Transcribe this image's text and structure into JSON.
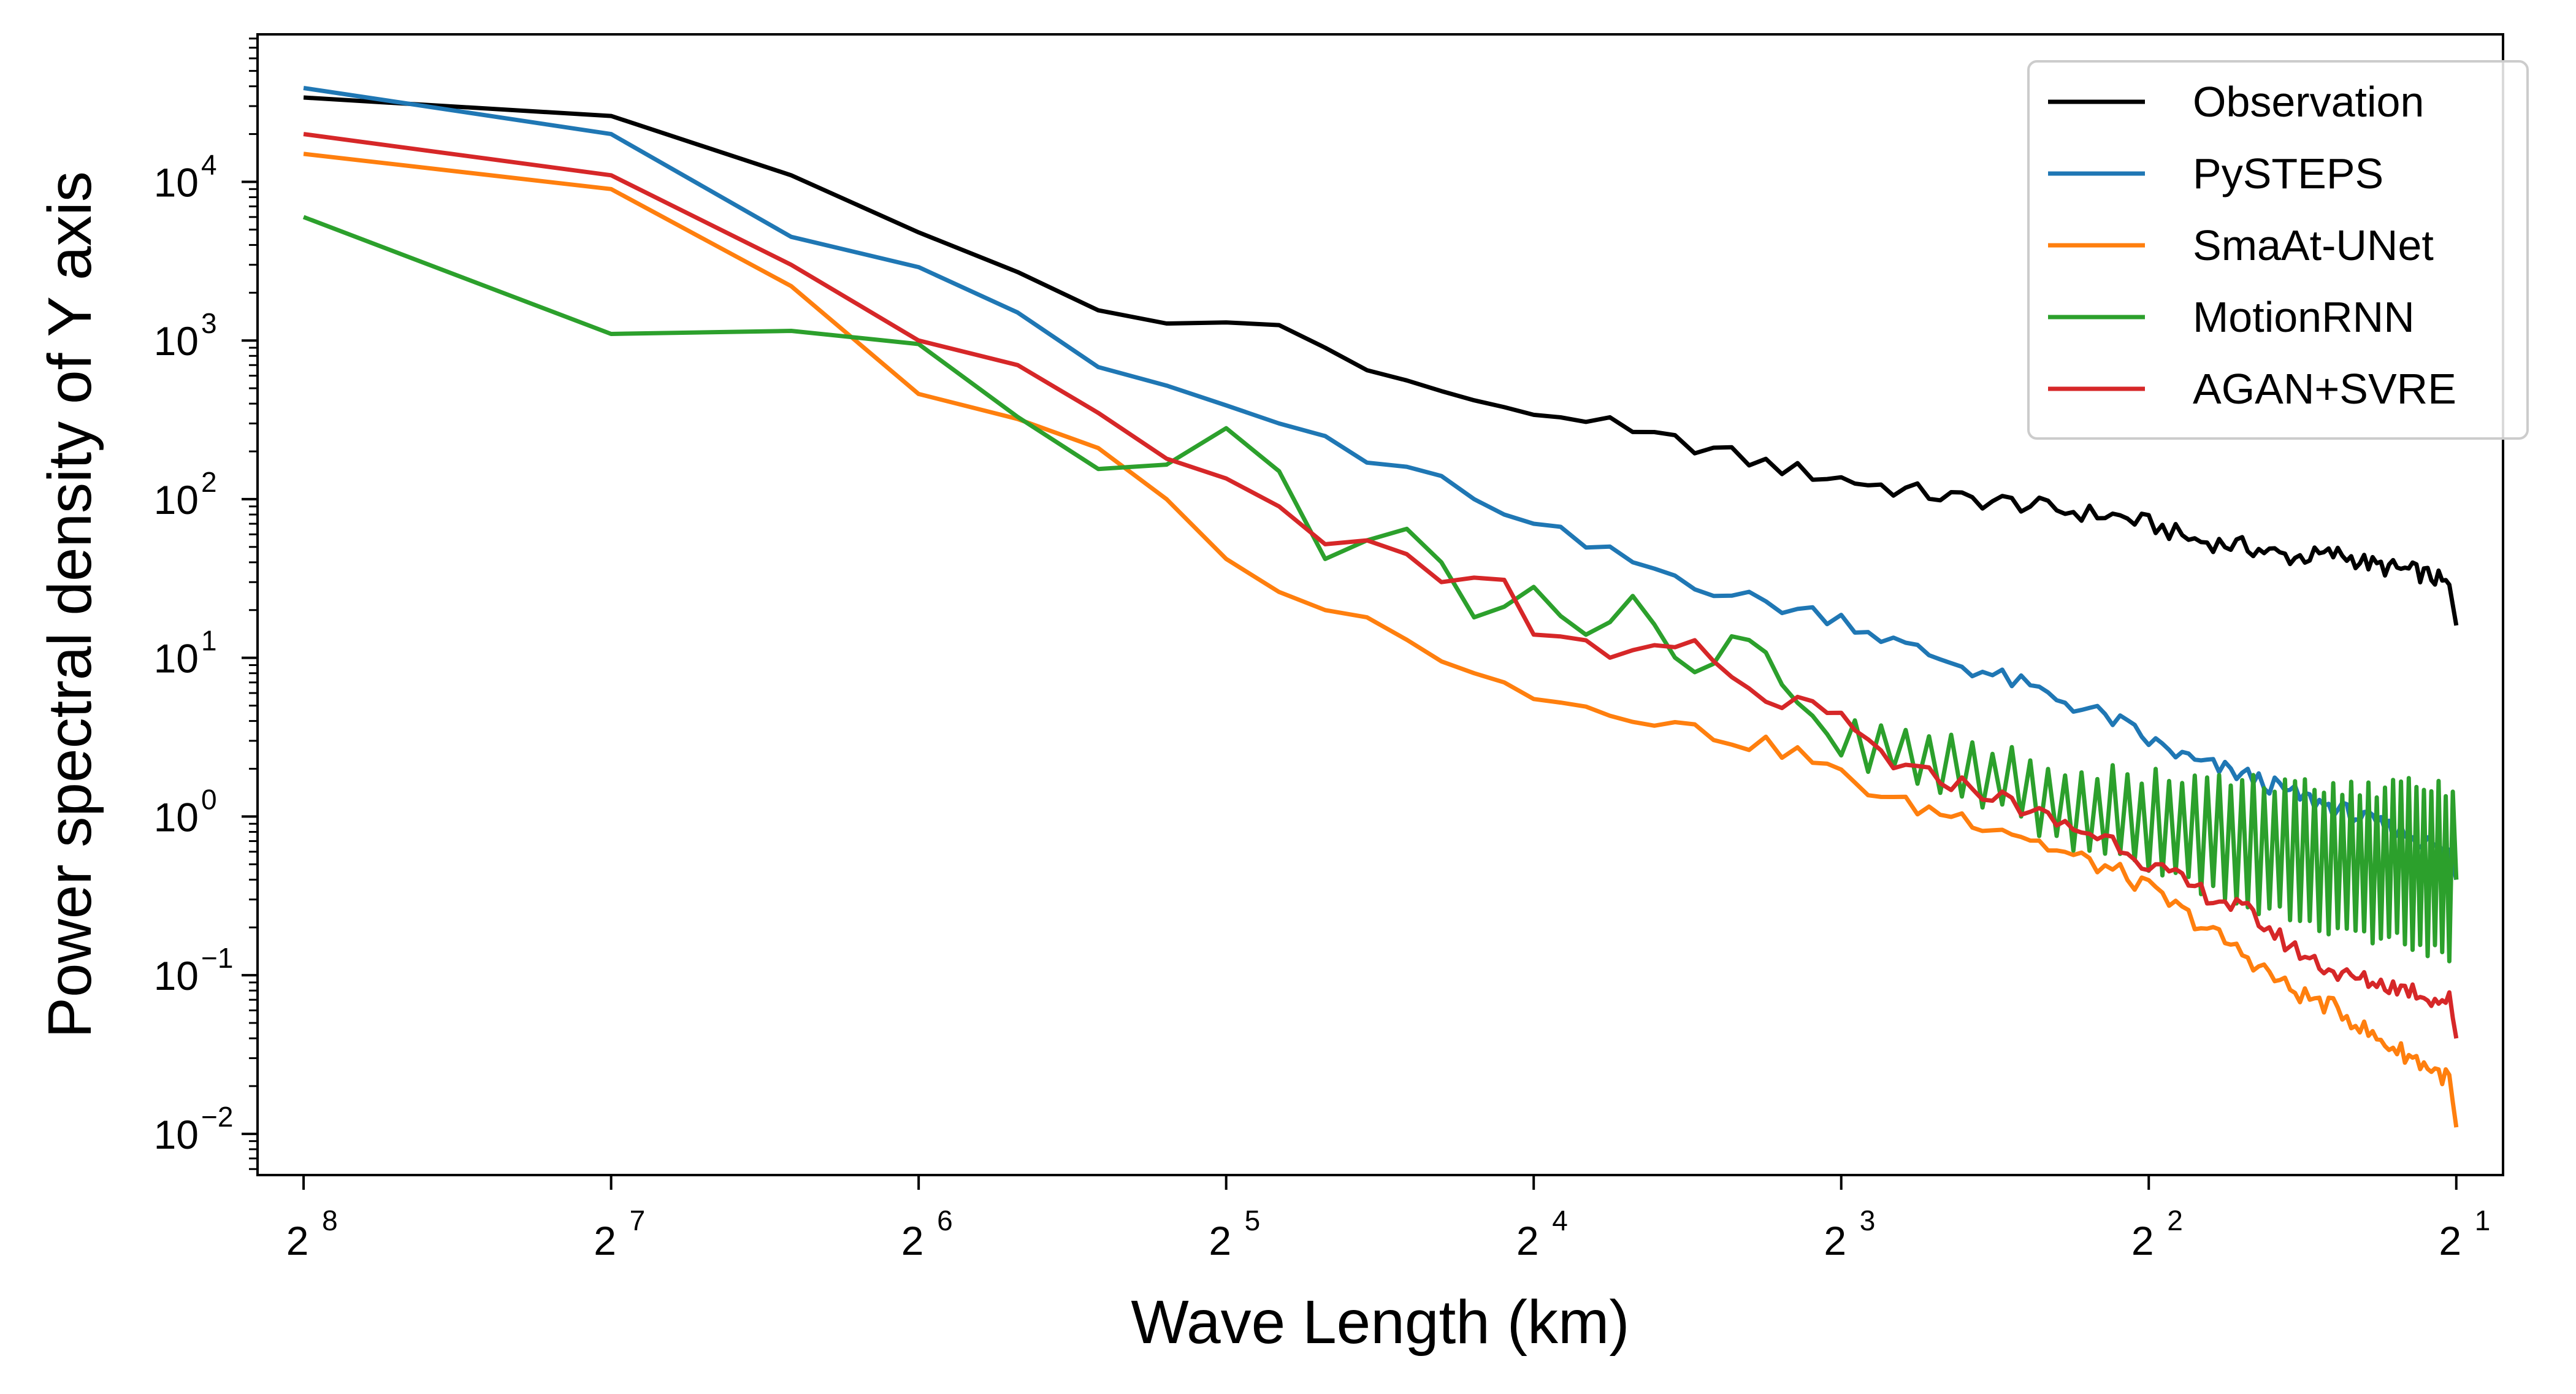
{
  "chart_data": {
    "type": "line",
    "title": "",
    "xlabel": "Wave Length (km)",
    "ylabel": "Power spectral density of Y axis",
    "x_scale": "log2-reversed",
    "y_scale": "log10",
    "xlim": [
      284,
      1.8
    ],
    "ylim": [
      0.0055,
      85000
    ],
    "x_ticks": [
      {
        "value": 256,
        "base": "2",
        "exp": "8"
      },
      {
        "value": 128,
        "base": "2",
        "exp": "7"
      },
      {
        "value": 64,
        "base": "2",
        "exp": "6"
      },
      {
        "value": 32,
        "base": "2",
        "exp": "5"
      },
      {
        "value": 16,
        "base": "2",
        "exp": "4"
      },
      {
        "value": 8,
        "base": "2",
        "exp": "3"
      },
      {
        "value": 4,
        "base": "2",
        "exp": "2"
      },
      {
        "value": 2,
        "base": "2",
        "exp": "1"
      }
    ],
    "y_ticks": [
      {
        "value": 10000,
        "base": "10",
        "exp": "4"
      },
      {
        "value": 1000,
        "base": "10",
        "exp": "3"
      },
      {
        "value": 100,
        "base": "10",
        "exp": "2"
      },
      {
        "value": 10,
        "base": "10",
        "exp": "1"
      },
      {
        "value": 1,
        "base": "10",
        "exp": "0"
      },
      {
        "value": 0.1,
        "base": "10",
        "exp": "−1"
      },
      {
        "value": 0.01,
        "base": "10",
        "exp": "−2"
      }
    ],
    "grid": false,
    "legend_position": "top-right",
    "series": [
      {
        "name": "Observation",
        "color": "#000000",
        "sample_count": 128,
        "x": [
          256,
          128,
          85.3,
          64,
          51.2,
          42.7,
          36.6,
          32,
          28.4,
          25.6,
          23.3,
          21.3,
          19.7,
          18.3,
          17.1,
          16,
          14.2,
          12.8,
          11.1,
          10,
          8.8,
          8,
          7,
          6.1,
          5.4,
          4.9,
          4.3,
          4,
          3.6,
          3.2,
          2.9,
          2.6,
          2.4,
          2.2,
          2.1,
          2.03,
          2
        ],
        "y": [
          34000,
          26000,
          11000,
          4800,
          2700,
          1550,
          1280,
          1300,
          1250,
          900,
          650,
          560,
          480,
          420,
          380,
          340,
          330,
          250,
          220,
          180,
          150,
          135,
          115,
          100,
          95,
          85,
          78,
          70,
          55,
          50,
          43,
          45,
          38,
          35,
          32,
          28,
          16
        ]
      },
      {
        "name": "PySTEPS",
        "color": "#1f77b4",
        "sample_count": 128,
        "x": [
          256,
          128,
          85.3,
          64,
          51.2,
          42.7,
          36.6,
          32,
          28.4,
          25.6,
          23.3,
          21.3,
          19.7,
          18.3,
          17.1,
          16,
          14.2,
          12.8,
          11.1,
          10,
          8.8,
          8,
          7,
          6.1,
          5.4,
          4.9,
          4.3,
          4,
          3.6,
          3.2,
          2.9,
          2.6,
          2.4,
          2.2,
          2.1,
          2.03,
          2
        ],
        "y": [
          39000,
          20000,
          4500,
          2900,
          1500,
          680,
          520,
          390,
          300,
          250,
          170,
          160,
          140,
          100,
          80,
          70,
          50,
          40,
          30,
          24,
          20,
          18,
          12,
          9,
          7,
          5.5,
          4,
          3,
          2.2,
          1.8,
          1.4,
          1.1,
          0.9,
          0.75,
          0.65,
          0.6,
          0.4
        ]
      },
      {
        "name": "SmaAt-UNet",
        "color": "#ff7f0e",
        "sample_count": 128,
        "x": [
          256,
          128,
          85.3,
          64,
          51.2,
          42.7,
          36.6,
          32,
          28.4,
          25.6,
          23.3,
          21.3,
          19.7,
          18.3,
          17.1,
          16,
          14.2,
          12.8,
          11.1,
          10,
          8.8,
          8,
          7,
          6.1,
          5.4,
          4.9,
          4.3,
          4,
          3.6,
          3.2,
          2.9,
          2.6,
          2.4,
          2.2,
          2.1,
          2.03,
          2
        ],
        "y": [
          15000,
          9000,
          2200,
          460,
          320,
          210,
          100,
          42,
          26,
          20,
          18,
          13,
          9.5,
          8,
          7,
          5.5,
          5,
          4.5,
          3.5,
          3,
          2.5,
          1.8,
          1.2,
          1,
          0.8,
          0.6,
          0.45,
          0.35,
          0.22,
          0.13,
          0.08,
          0.06,
          0.04,
          0.03,
          0.025,
          0.022,
          0.011
        ]
      },
      {
        "name": "MotionRNN",
        "color": "#2ca02c",
        "sample_count": 128,
        "x": [
          256,
          128,
          85.3,
          64,
          51.2,
          42.7,
          36.6,
          32,
          28.4,
          25.6,
          23.3,
          21.3,
          19.7,
          18.3,
          17.1,
          16,
          14.2,
          12.8,
          11.1,
          10,
          8.8,
          8,
          7,
          6.1,
          5.4,
          4.9,
          4.3,
          4,
          3.6,
          3.2,
          2.9,
          2.6,
          2.4,
          2.2,
          2.1,
          2.03,
          2
        ],
        "y": [
          6000,
          1100,
          1150,
          950,
          330,
          155,
          165,
          280,
          150,
          42,
          55,
          65,
          40,
          18,
          21,
          28,
          14,
          22,
          7,
          15,
          5,
          3,
          2.5,
          2,
          1.6,
          1.2,
          1,
          0.9,
          0.8,
          0.7,
          0.6,
          0.55,
          0.5,
          0.5,
          0.45,
          0.45,
          0.4
        ],
        "oscillation": {
          "from_x": 8,
          "to_x": 2,
          "low": 0.25,
          "high": 0.9
        }
      },
      {
        "name": "AGAN+SVRE",
        "color": "#d62728",
        "sample_count": 128,
        "x": [
          256,
          128,
          85.3,
          64,
          51.2,
          42.7,
          36.6,
          32,
          28.4,
          25.6,
          23.3,
          21.3,
          19.7,
          18.3,
          17.1,
          16,
          14.2,
          12.8,
          11.1,
          10,
          8.8,
          8,
          7,
          6.1,
          5.4,
          4.9,
          4.3,
          4,
          3.6,
          3.2,
          2.9,
          2.6,
          2.4,
          2.2,
          2.1,
          2.03,
          2
        ],
        "y": [
          20000,
          11000,
          3000,
          1000,
          700,
          350,
          180,
          135,
          90,
          52,
          55,
          45,
          30,
          32,
          31,
          14,
          13,
          10,
          12,
          6,
          5,
          4,
          2,
          1.6,
          1.2,
          0.9,
          0.7,
          0.5,
          0.35,
          0.25,
          0.15,
          0.1,
          0.09,
          0.08,
          0.07,
          0.07,
          0.04
        ]
      }
    ]
  }
}
